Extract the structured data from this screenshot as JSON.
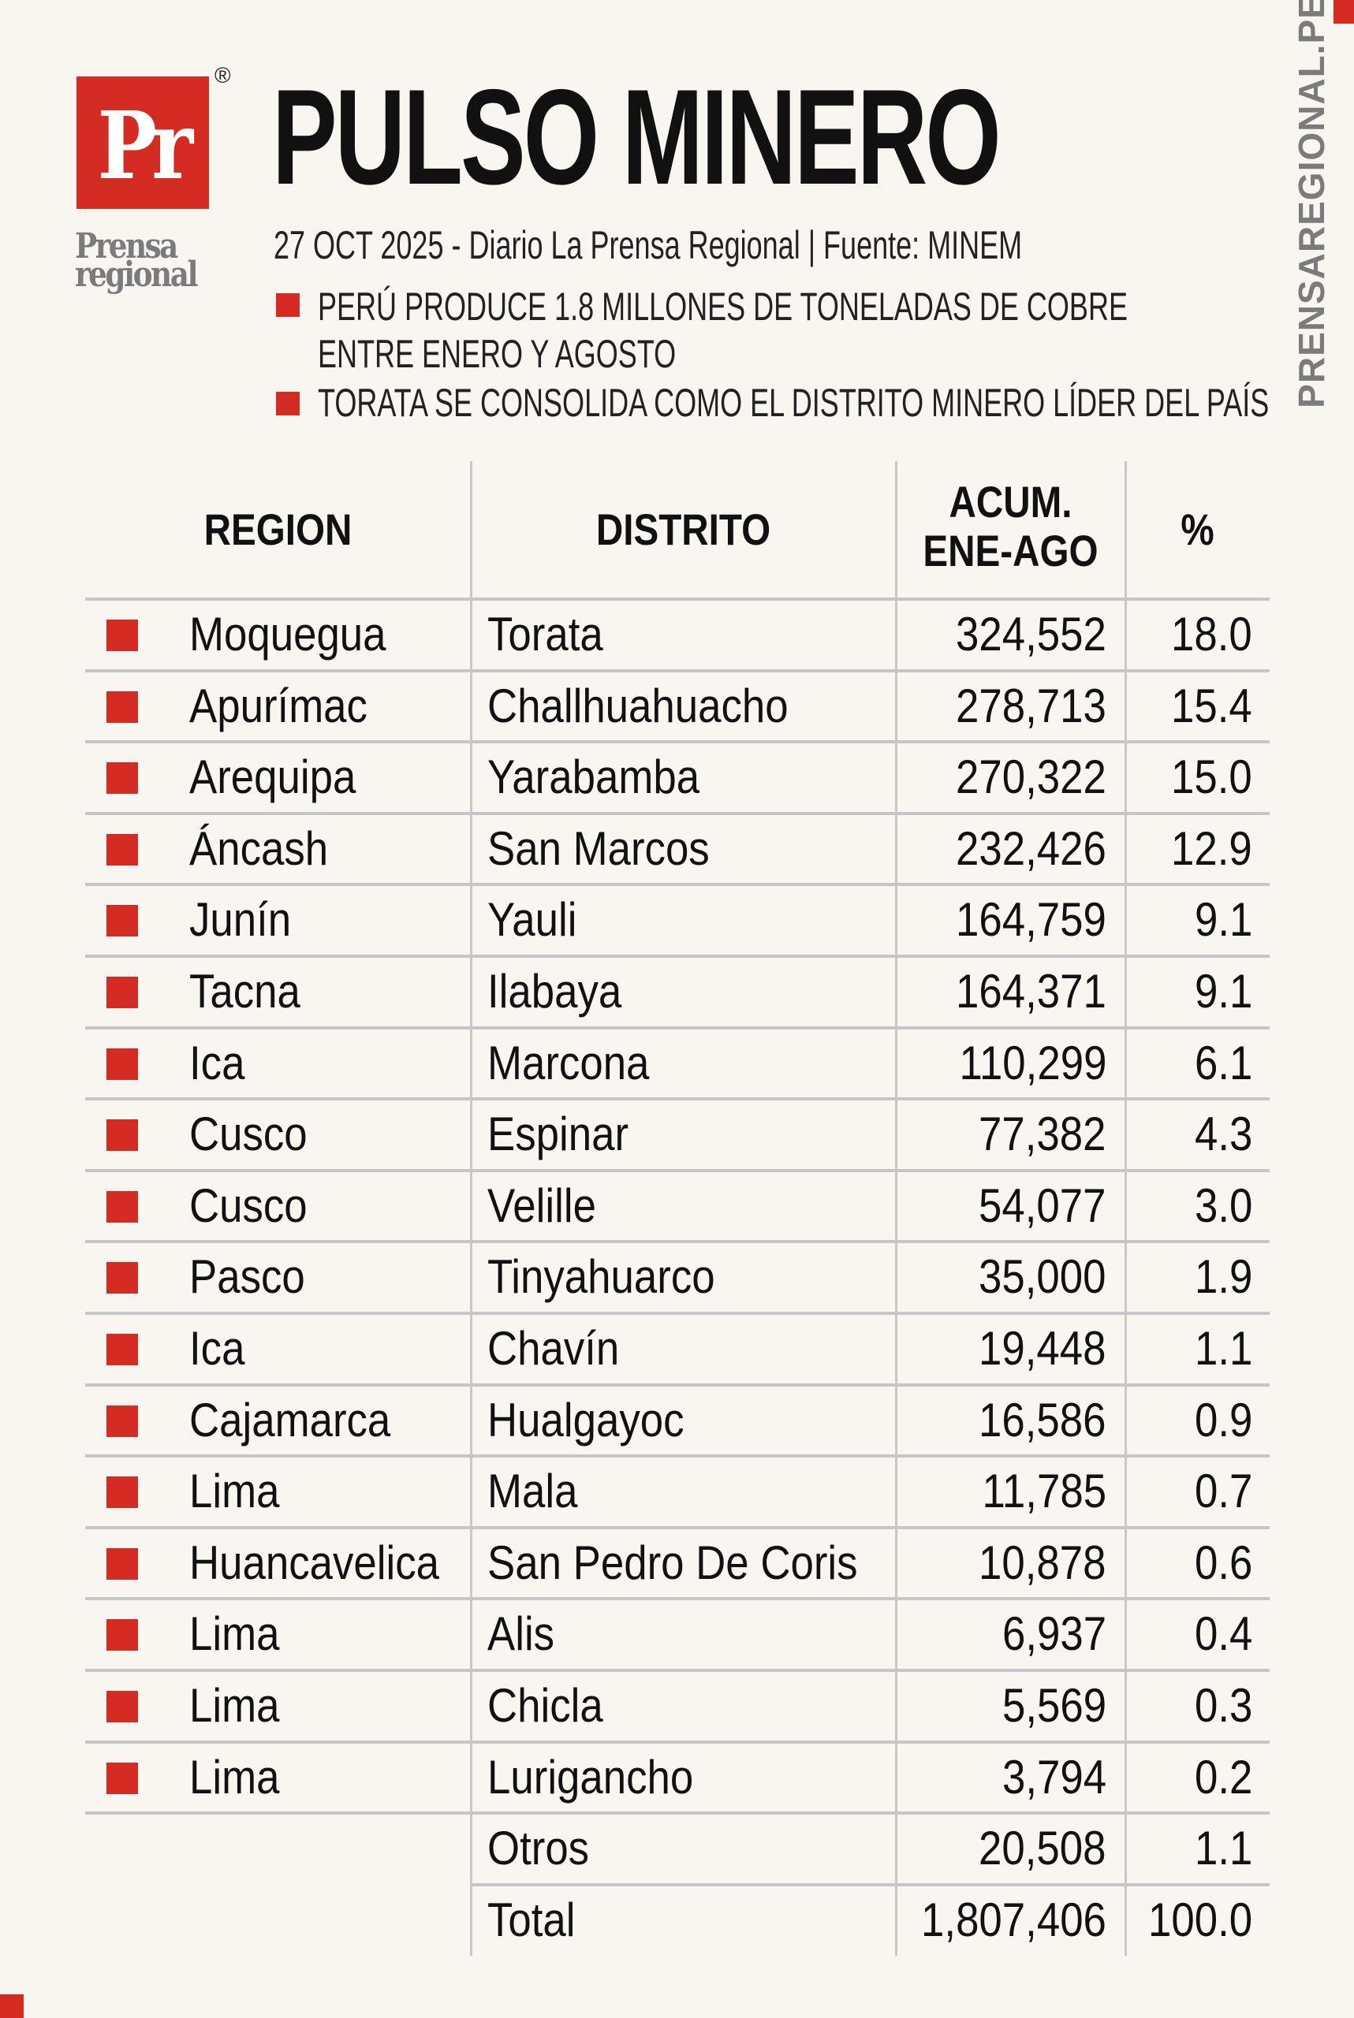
{
  "brand": {
    "logo_letters": "Pr",
    "logo_name_1": "Prensa",
    "logo_name_2": "regional",
    "registered": "®",
    "site": "PRENSAREGIONAL.PE",
    "accent": "#d42b22"
  },
  "header": {
    "title": "PULSO MINERO",
    "subtitle": "27 OCT 2025 - Diario La Prensa Regional | Fuente: MINEM",
    "bullets": [
      {
        "line1": "PERÚ PRODUCE 1.8 MILLONES DE TONELADAS DE COBRE",
        "line2": "ENTRE ENERO Y AGOSTO"
      },
      {
        "line1": "TORATA SE CONSOLIDA COMO EL DISTRITO MINERO LÍDER DEL PAÍS"
      }
    ]
  },
  "table": {
    "headers": {
      "region": "REGION",
      "distrito": "DISTRITO",
      "acum_1": "ACUM.",
      "acum_2": "ENE-AGO",
      "pct": "%"
    },
    "rows": [
      {
        "region": "Moquegua",
        "distrito": "Torata",
        "acum": "324,552",
        "pct": "18.0"
      },
      {
        "region": "Apurímac",
        "distrito": "Challhuahuacho",
        "acum": "278,713",
        "pct": "15.4"
      },
      {
        "region": "Arequipa",
        "distrito": "Yarabamba",
        "acum": "270,322",
        "pct": "15.0"
      },
      {
        "region": "Áncash",
        "distrito": "San Marcos",
        "acum": "232,426",
        "pct": "12.9"
      },
      {
        "region": "Junín",
        "distrito": "Yauli",
        "acum": "164,759",
        "pct": "9.1"
      },
      {
        "region": "Tacna",
        "distrito": "Ilabaya",
        "acum": "164,371",
        "pct": "9.1"
      },
      {
        "region": "Ica",
        "distrito": "Marcona",
        "acum": "110,299",
        "pct": "6.1"
      },
      {
        "region": "Cusco",
        "distrito": "Espinar",
        "acum": "77,382",
        "pct": "4.3"
      },
      {
        "region": "Cusco",
        "distrito": "Velille",
        "acum": "54,077",
        "pct": "3.0"
      },
      {
        "region": "Pasco",
        "distrito": "Tinyahuarco",
        "acum": "35,000",
        "pct": "1.9"
      },
      {
        "region": "Ica",
        "distrito": "Chavín",
        "acum": "19,448",
        "pct": "1.1"
      },
      {
        "region": "Cajamarca",
        "distrito": "Hualgayoc",
        "acum": "16,586",
        "pct": "0.9"
      },
      {
        "region": "Lima",
        "distrito": "Mala",
        "acum": "11,785",
        "pct": "0.7"
      },
      {
        "region": "Huancavelica",
        "distrito": "San Pedro De Coris",
        "acum": "10,878",
        "pct": "0.6"
      },
      {
        "region": "Lima",
        "distrito": "Alis",
        "acum": "6,937",
        "pct": "0.4"
      },
      {
        "region": "Lima",
        "distrito": "Chicla",
        "acum": "5,569",
        "pct": "0.3"
      },
      {
        "region": "Lima",
        "distrito": "Lurigancho",
        "acum": "3,794",
        "pct": "0.2"
      }
    ],
    "otros": {
      "distrito": "Otros",
      "acum": "20,508",
      "pct": "1.1"
    },
    "total": {
      "distrito": "Total",
      "acum": "1,807,406",
      "pct": "100.0"
    }
  }
}
